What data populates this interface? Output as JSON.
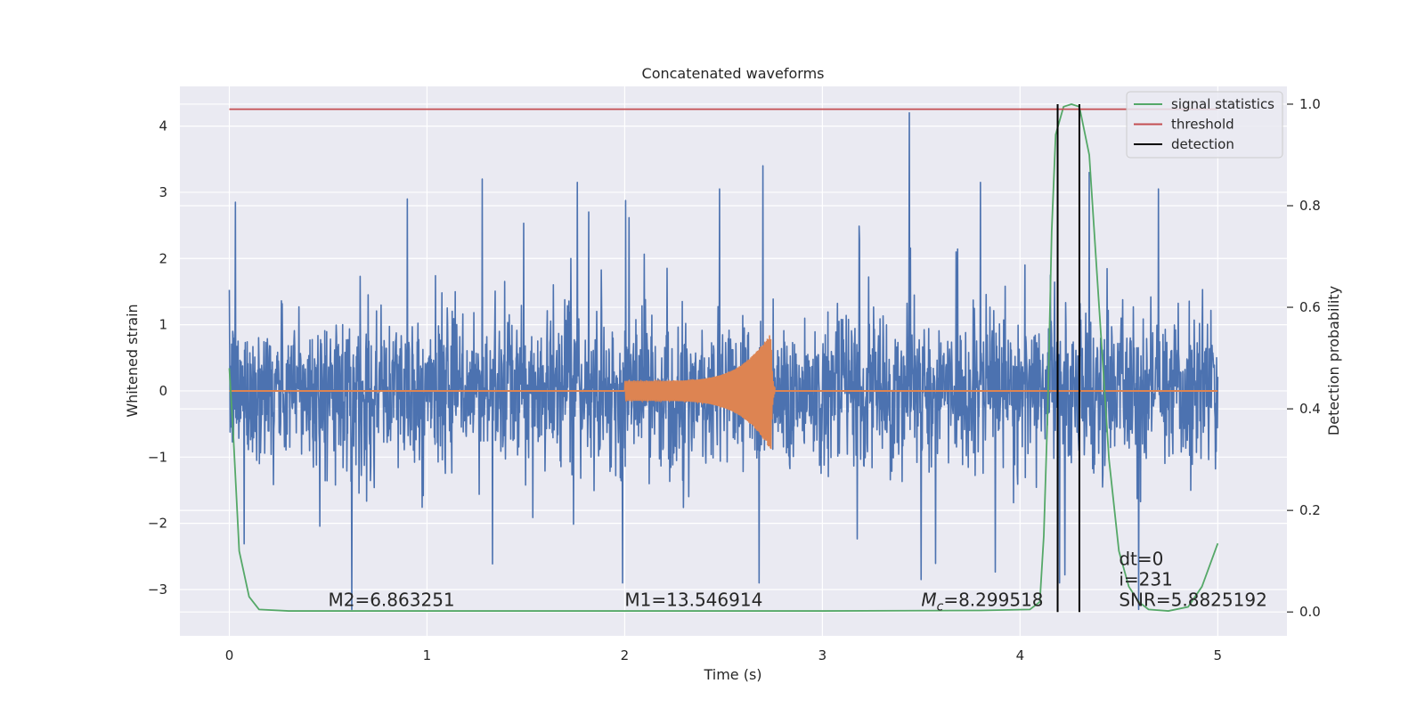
{
  "chart_data": {
    "type": "line",
    "title": "Concatenated waveforms",
    "xlabel": "Time (s)",
    "ylabel": "Whitened strain",
    "y2label": "Detection probability",
    "xlim": [
      -0.25,
      5.35
    ],
    "ylim": [
      -3.7,
      4.6
    ],
    "y2lim": [
      -0.047,
      1.035
    ],
    "x_ticks": [
      "0",
      "1",
      "2",
      "3",
      "4",
      "5"
    ],
    "y_ticks": [
      "−3",
      "−2",
      "−1",
      "0",
      "1",
      "2",
      "3",
      "4"
    ],
    "y2_ticks": [
      "0.0",
      "0.2",
      "0.4",
      "0.6",
      "0.8",
      "1.0"
    ],
    "grid": true,
    "legend_position": "top-right",
    "legend": [
      "signal statistics",
      "threshold",
      "detection"
    ],
    "series": [
      {
        "kind": "noise",
        "color": "#4c72b0",
        "x_range": [
          0,
          5
        ],
        "envelope": {
          "typical": [
            -1.5,
            1.7
          ],
          "spike_max": 4.2,
          "spike_min": -3.4
        },
        "notable_peaks": [
          {
            "x": 0.03,
            "y": 2.85
          },
          {
            "x": 0.9,
            "y": 2.9
          },
          {
            "x": 1.28,
            "y": 3.2
          },
          {
            "x": 1.76,
            "y": 3.15
          },
          {
            "x": 2.48,
            "y": 3.05
          },
          {
            "x": 2.7,
            "y": 3.4
          },
          {
            "x": 3.44,
            "y": 4.2
          },
          {
            "x": 3.8,
            "y": 3.15
          },
          {
            "x": 4.35,
            "y": 3.3
          },
          {
            "x": 4.7,
            "y": 3.05
          }
        ],
        "notable_troughs": [
          {
            "x": 0.62,
            "y": -3.3
          },
          {
            "x": 1.99,
            "y": -2.9
          },
          {
            "x": 2.68,
            "y": -2.9
          },
          {
            "x": 3.5,
            "y": -2.85
          },
          {
            "x": 4.2,
            "y": -2.9
          },
          {
            "x": 4.6,
            "y": -3.3
          }
        ]
      },
      {
        "kind": "chirp",
        "color": "#dd8452",
        "x_range": [
          0,
          5
        ],
        "signal_start": 2.0,
        "signal_end": 2.76,
        "amp_start": 0.15,
        "amp_peak": 0.9,
        "peak_time": 2.74
      },
      {
        "name": "signal statistics",
        "axis": "right",
        "color": "#55a868",
        "points": [
          [
            0,
            0.48
          ],
          [
            0.02,
            0.35
          ],
          [
            0.05,
            0.12
          ],
          [
            0.1,
            0.03
          ],
          [
            0.15,
            0.005
          ],
          [
            0.3,
            0.002
          ],
          [
            1.0,
            0.002
          ],
          [
            2.0,
            0.002
          ],
          [
            3.0,
            0.002
          ],
          [
            3.8,
            0.003
          ],
          [
            4.05,
            0.005
          ],
          [
            4.1,
            0.02
          ],
          [
            4.12,
            0.15
          ],
          [
            4.14,
            0.4
          ],
          [
            4.16,
            0.75
          ],
          [
            4.18,
            0.94
          ],
          [
            4.22,
            0.995
          ],
          [
            4.26,
            1.0
          ],
          [
            4.3,
            0.995
          ],
          [
            4.35,
            0.9
          ],
          [
            4.4,
            0.6
          ],
          [
            4.45,
            0.3
          ],
          [
            4.5,
            0.12
          ],
          [
            4.55,
            0.05
          ],
          [
            4.6,
            0.02
          ],
          [
            4.65,
            0.005
          ],
          [
            4.75,
            0.002
          ],
          [
            4.85,
            0.01
          ],
          [
            4.92,
            0.05
          ],
          [
            5.0,
            0.135
          ]
        ]
      },
      {
        "name": "threshold",
        "axis": "right",
        "color": "#c44e52",
        "x": [
          0,
          5
        ],
        "y": [
          0.99,
          0.99
        ]
      },
      {
        "name": "detection",
        "axis": "right",
        "color": "#000000",
        "x_positions": [
          4.19,
          4.3
        ],
        "y": [
          0,
          1.0
        ]
      }
    ],
    "annotations": [
      {
        "text": "M2=6.863251",
        "x": 0.5,
        "y": -3.25
      },
      {
        "text": "M1=13.546914",
        "x": 2.0,
        "y": -3.25
      },
      {
        "symbol": "M",
        "sub": "c",
        "rest": "=8.299518",
        "x": 3.5,
        "y": -3.25
      },
      {
        "text": "dt=0",
        "x": 4.5,
        "y": -2.63
      },
      {
        "text": "i=231",
        "x": 4.5,
        "y": -2.94
      },
      {
        "text": "SNR=5.8825192",
        "x": 4.5,
        "y": -3.25
      }
    ]
  }
}
